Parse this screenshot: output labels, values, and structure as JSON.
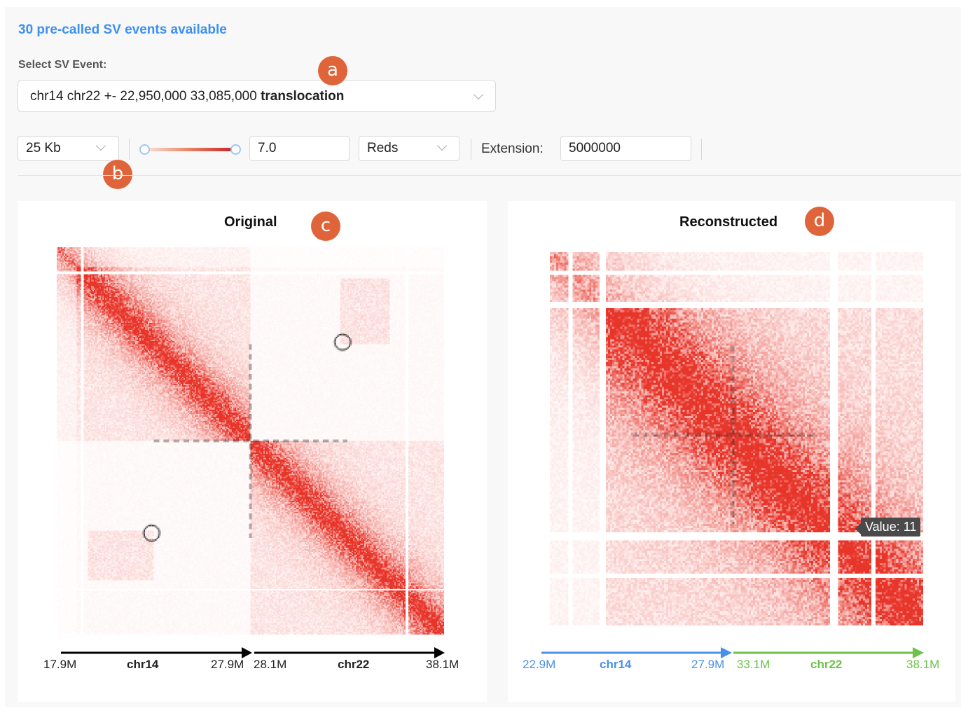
{
  "header": {
    "event_count_text": "30 pre-called SV events available",
    "select_label": "Select SV Event:",
    "selected_event": {
      "chr_pair": "chr14 chr22 +- 22,950,000 33,085,000",
      "type": "translocation"
    }
  },
  "toolbar": {
    "resolution": "25 Kb",
    "color_range_min": 0,
    "color_range_max": "7.0",
    "colormap": "Reds",
    "extension_label": "Extension:",
    "extension_value": "5000000"
  },
  "badges": {
    "a": "a",
    "b": "b",
    "c": "c",
    "d": "d"
  },
  "panels": {
    "original": {
      "title": "Original",
      "axis": {
        "left_start": "17.9M",
        "left_chr": "chr14",
        "left_end": "27.9M",
        "right_start": "28.1M",
        "right_chr": "chr22",
        "right_end": "38.1M",
        "left_color": "#000000",
        "right_color": "#000000"
      }
    },
    "reconstructed": {
      "title": "Reconstructed",
      "tooltip": "Value: 11",
      "axis": {
        "left_start": "22.9M",
        "left_chr": "chr14",
        "left_end": "27.9M",
        "right_start": "33.1M",
        "right_chr": "chr22",
        "right_end": "38.1M",
        "left_color": "#4a90e8",
        "right_color": "#6cc24a"
      }
    }
  },
  "colors": {
    "heat": "#e8352a",
    "accent_blue": "#3d8ff0",
    "badge": "#e0643a"
  },
  "chart_data": [
    {
      "type": "heatmap",
      "title": "Original",
      "description": "Hi-C contact matrix, chr14 17.9M-27.9M vs chr22 28.1M-38.1M, translocation breakpoints circled",
      "x_segments": [
        {
          "chr": "chr14",
          "start": "17.9M",
          "end": "27.9M"
        },
        {
          "chr": "chr22",
          "start": "28.1M",
          "end": "38.1M"
        }
      ],
      "colormap": "Reds",
      "vmax": 7.0
    },
    {
      "type": "heatmap",
      "title": "Reconstructed",
      "description": "Reconstructed contact matrix joining chr14 22.9M-27.9M with chr22 33.1M-38.1M",
      "x_segments": [
        {
          "chr": "chr14",
          "start": "22.9M",
          "end": "27.9M"
        },
        {
          "chr": "chr22",
          "start": "33.1M",
          "end": "38.1M"
        }
      ],
      "colormap": "Reds",
      "vmax": 7.0,
      "annotations": [
        "Value: 11"
      ]
    }
  ]
}
